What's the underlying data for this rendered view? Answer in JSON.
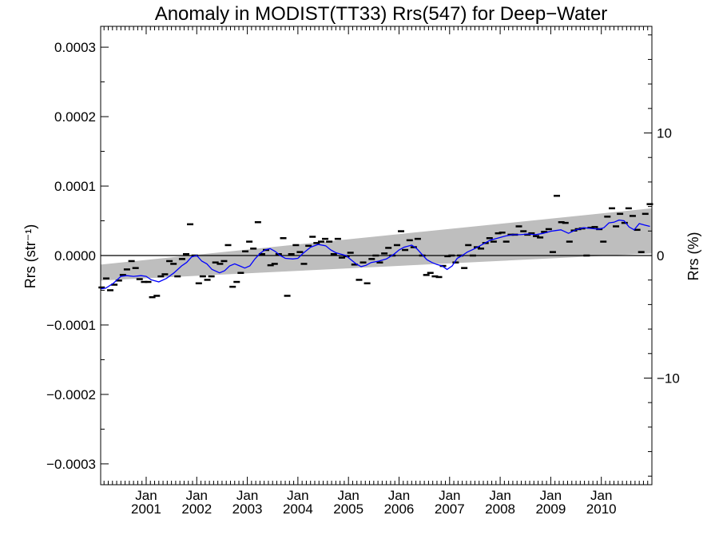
{
  "chart_data": {
    "type": "line",
    "title": "Anomaly in MODIST(TT33) Rrs(547) for Deep−Water",
    "ylabel": "Rrs (str⁻¹)",
    "ylabel_right": "Rrs (%)",
    "xlim": [
      2000.1,
      2011.0
    ],
    "ylim": [
      -0.00033,
      0.00033
    ],
    "ylim_right": [
      -18.7,
      18.7
    ],
    "x_ticks": [
      {
        "x": 2001.0,
        "top": "Jan",
        "bottom": "2001"
      },
      {
        "x": 2002.0,
        "top": "Jan",
        "bottom": "2002"
      },
      {
        "x": 2003.0,
        "top": "Jan",
        "bottom": "2003"
      },
      {
        "x": 2004.0,
        "top": "Jan",
        "bottom": "2004"
      },
      {
        "x": 2005.0,
        "top": "Jan",
        "bottom": "2005"
      },
      {
        "x": 2006.0,
        "top": "Jan",
        "bottom": "2006"
      },
      {
        "x": 2007.0,
        "top": "Jan",
        "bottom": "2007"
      },
      {
        "x": 2008.0,
        "top": "Jan",
        "bottom": "2008"
      },
      {
        "x": 2009.0,
        "top": "Jan",
        "bottom": "2009"
      },
      {
        "x": 2010.0,
        "top": "Jan",
        "bottom": "2010"
      }
    ],
    "y_ticks_left": [
      {
        "v": 0.0003,
        "label": "0.0003"
      },
      {
        "v": 0.0002,
        "label": "0.0002"
      },
      {
        "v": 0.0001,
        "label": "0.0001"
      },
      {
        "v": 0.0,
        "label": "0.0000"
      },
      {
        "v": -0.0001,
        "label": "−0.0001"
      },
      {
        "v": -0.0002,
        "label": "−0.0002"
      },
      {
        "v": -0.0003,
        "label": "−0.0003"
      }
    ],
    "y_ticks_right": [
      {
        "v": 10,
        "label": "10"
      },
      {
        "v": 0,
        "label": "0"
      },
      {
        "v": -10,
        "label": "−10"
      }
    ],
    "reference_line": 0.0,
    "band": {
      "x": [
        2000.1,
        2011.0
      ],
      "upper": [
        -1.3e-05,
        6.8e-05
      ],
      "lower": [
        -3.6e-05,
        3e-06
      ],
      "color": "#bebebe"
    },
    "series": [
      {
        "kind": "points",
        "marker": "dash",
        "color": "#000000",
        "x": [
          2000.12,
          2000.21,
          2000.29,
          2000.37,
          2000.46,
          2000.54,
          2000.62,
          2000.71,
          2000.79,
          2000.87,
          2000.96,
          2001.04,
          2001.12,
          2001.21,
          2001.29,
          2001.37,
          2001.46,
          2001.54,
          2001.62,
          2001.71,
          2001.79,
          2001.87,
          2001.96,
          2002.04,
          2002.12,
          2002.21,
          2002.29,
          2002.37,
          2002.46,
          2002.54,
          2002.62,
          2002.71,
          2002.79,
          2002.87,
          2002.96,
          2003.04,
          2003.12,
          2003.21,
          2003.29,
          2003.37,
          2003.46,
          2003.54,
          2003.62,
          2003.71,
          2003.79,
          2003.87,
          2003.96,
          2004.04,
          2004.12,
          2004.21,
          2004.29,
          2004.37,
          2004.46,
          2004.54,
          2004.62,
          2004.71,
          2004.79,
          2004.87,
          2004.96,
          2005.04,
          2005.12,
          2005.21,
          2005.29,
          2005.37,
          2005.46,
          2005.54,
          2005.62,
          2005.71,
          2005.79,
          2005.87,
          2005.96,
          2006.04,
          2006.12,
          2006.21,
          2006.29,
          2006.37,
          2006.46,
          2006.54,
          2006.62,
          2006.71,
          2006.79,
          2006.87,
          2006.96,
          2007.04,
          2007.12,
          2007.21,
          2007.29,
          2007.37,
          2007.46,
          2007.54,
          2007.62,
          2007.71,
          2007.79,
          2007.87,
          2007.96,
          2008.04,
          2008.12,
          2008.21,
          2008.29,
          2008.37,
          2008.46,
          2008.54,
          2008.62,
          2008.71,
          2008.79,
          2008.87,
          2008.96,
          2009.04,
          2009.12,
          2009.21,
          2009.29,
          2009.37,
          2009.46,
          2009.54,
          2009.62,
          2009.71,
          2009.79,
          2009.87,
          2009.96,
          2010.04,
          2010.12,
          2010.21,
          2010.29,
          2010.37,
          2010.46,
          2010.54,
          2010.62,
          2010.71,
          2010.79,
          2010.87,
          2010.96
        ],
        "y": [
          -4.6e-05,
          -3.3e-05,
          -5e-05,
          -4.2e-05,
          -3.6e-05,
          -2.8e-05,
          -2e-05,
          -8e-06,
          -1.8e-05,
          -3.4e-05,
          -3.8e-05,
          -3.8e-05,
          -6e-05,
          -5.8e-05,
          -3e-05,
          -2.7e-05,
          -8e-06,
          -1.2e-05,
          -3e-05,
          -5e-06,
          2e-06,
          4.5e-05,
          0.0,
          -4e-05,
          -3e-05,
          -3.5e-05,
          -3e-05,
          -1e-05,
          -1.2e-05,
          -8e-06,
          1.5e-05,
          -4.5e-05,
          -3.8e-05,
          -2.5e-05,
          6e-06,
          2e-05,
          1e-05,
          4.8e-05,
          2e-06,
          8e-06,
          -1.4e-05,
          -1.2e-05,
          2e-06,
          2.5e-05,
          -5.8e-05,
          2e-06,
          1.5e-05,
          5e-06,
          -1.2e-05,
          1.4e-05,
          2.7e-05,
          1.8e-05,
          2e-05,
          2.4e-05,
          2e-05,
          2e-06,
          2.4e-05,
          -3e-06,
          -1e-06,
          4e-06,
          -1.3e-05,
          -3.5e-05,
          -1e-05,
          -4e-05,
          -5e-06,
          0.0,
          -1e-05,
          3e-06,
          1.1e-05,
          0.0,
          1.5e-05,
          3.5e-05,
          8e-06,
          2.2e-05,
          1.2e-05,
          2.4e-05,
          0.0,
          -2.8e-05,
          -2.5e-05,
          -3e-05,
          -3.1e-05,
          -1.5e-05,
          -1e-06,
          0.0,
          -1e-05,
          0.0,
          -1.8e-05,
          1.5e-05,
          0.0,
          1.2e-05,
          1e-05,
          1.8e-05,
          2.5e-05,
          2e-05,
          3.2e-05,
          3.3e-05,
          2e-05,
          3e-05,
          3e-05,
          4.2e-05,
          3.5e-05,
          3e-05,
          3.2e-05,
          2.8e-05,
          2.6e-05,
          3.4e-05,
          3.8e-05,
          5e-06,
          8.6e-05,
          4.8e-05,
          4.7e-05,
          2e-05,
          3.6e-05,
          3.8e-05,
          3.9e-05,
          0.0,
          4e-05,
          4.1e-05,
          3.8e-05,
          2e-05,
          5.6e-05,
          6.8e-05,
          4.2e-05,
          6e-05,
          4.7e-05,
          6.8e-05,
          5.7e-05,
          3.7e-05,
          5e-06,
          6e-05,
          7.4e-05
        ]
      },
      {
        "kind": "line",
        "color": "#0000ff",
        "x": [
          2000.1,
          2000.2,
          2000.35,
          2000.5,
          2000.62,
          2000.75,
          2000.9,
          2001.0,
          2001.1,
          2001.25,
          2001.4,
          2001.55,
          2001.7,
          2001.8,
          2001.9,
          2002.0,
          2002.1,
          2002.2,
          2002.3,
          2002.45,
          2002.55,
          2002.65,
          2002.75,
          2002.85,
          2002.95,
          2003.05,
          2003.15,
          2003.25,
          2003.35,
          2003.45,
          2003.55,
          2003.65,
          2003.75,
          2003.9,
          2004.0,
          2004.1,
          2004.25,
          2004.4,
          2004.55,
          2004.65,
          2004.75,
          2004.85,
          2004.95,
          2005.05,
          2005.15,
          2005.25,
          2005.35,
          2005.45,
          2005.6,
          2005.75,
          2005.9,
          2006.0,
          2006.1,
          2006.25,
          2006.35,
          2006.45,
          2006.55,
          2006.65,
          2006.75,
          2006.85,
          2006.95,
          2007.05,
          2007.15,
          2007.25,
          2007.35,
          2007.5,
          2007.65,
          2007.8,
          2007.95,
          2008.1,
          2008.25,
          2008.4,
          2008.55,
          2008.7,
          2008.85,
          2009.0,
          2009.1,
          2009.2,
          2009.35,
          2009.5,
          2009.65,
          2009.8,
          2009.95,
          2010.05,
          2010.15,
          2010.25,
          2010.35,
          2010.45,
          2010.55,
          2010.65,
          2010.75,
          2010.85,
          2010.96
        ],
        "y": [
          -4.8e-05,
          -4.7e-05,
          -4e-05,
          -3e-05,
          -2.9e-05,
          -3e-05,
          -2.9e-05,
          -3e-05,
          -3.5e-05,
          -3.8e-05,
          -3.3e-05,
          -2.5e-05,
          -1.5e-05,
          -1e-05,
          -2e-06,
          0.0,
          -8e-06,
          -1.2e-05,
          -2e-05,
          -2.5e-05,
          -2.2e-05,
          -1.5e-05,
          -1.2e-05,
          -1.5e-05,
          -1.8e-05,
          -1.5e-05,
          -5e-06,
          3e-06,
          8e-06,
          1e-05,
          6e-06,
          0.0,
          -4e-06,
          -5e-06,
          -4e-06,
          3e-06,
          1.2e-05,
          1.6e-05,
          1.4e-05,
          8e-06,
          4e-06,
          2e-06,
          0.0,
          -6e-06,
          -1.2e-05,
          -1.6e-05,
          -1.4e-05,
          -1e-05,
          -8e-06,
          -5e-06,
          2e-06,
          8e-06,
          1.2e-05,
          1.5e-05,
          1e-05,
          2e-06,
          -6e-06,
          -1e-05,
          -1.3e-05,
          -1.5e-05,
          -2e-05,
          -1.5e-05,
          -4e-06,
          0.0,
          5e-06,
          1e-05,
          1.6e-05,
          2.2e-05,
          2.5e-05,
          2.8e-05,
          3e-05,
          3e-05,
          3.1e-05,
          3e-05,
          3.2e-05,
          3.5e-05,
          3.6e-05,
          3.7e-05,
          3.2e-05,
          3.7e-05,
          4e-05,
          3.9e-05,
          3.8e-05,
          4e-05,
          4.7e-05,
          4.8e-05,
          5.1e-05,
          5e-05,
          4.1e-05,
          3.7e-05,
          4.6e-05,
          4.4e-05,
          4.2e-05
        ]
      }
    ]
  }
}
